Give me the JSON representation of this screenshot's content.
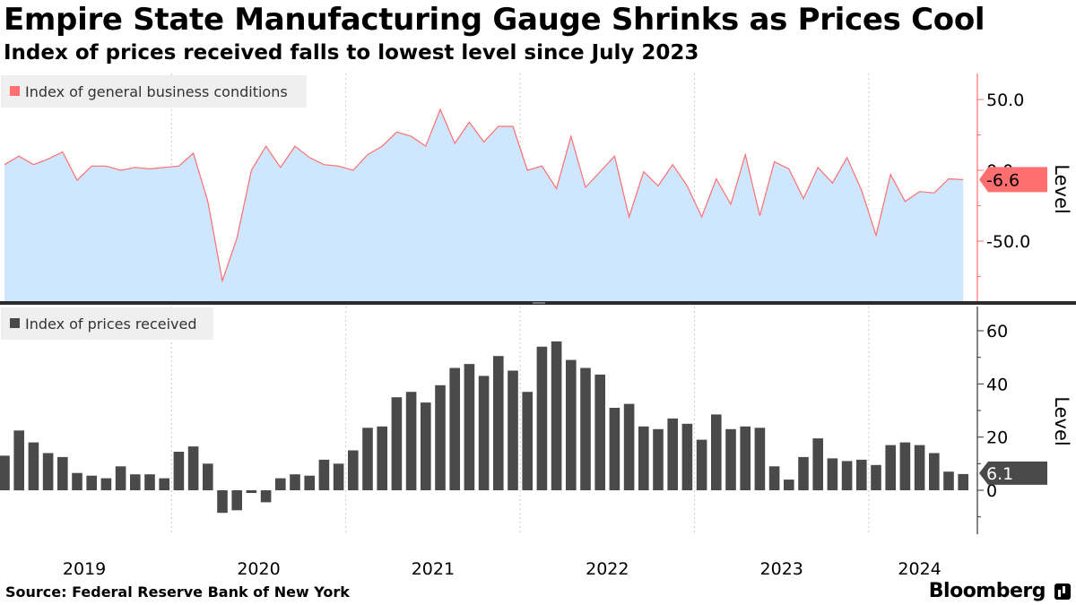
{
  "title": "Empire State Manufacturing Gauge Shrinks as Prices Cool",
  "subtitle": "Index of prices received falls to lowest level since July 2023",
  "source": "Source: Federal Reserve Bank of New York",
  "brand": "Bloomberg",
  "colors": {
    "line": "#ff6f6f",
    "area": "#cfe6ff",
    "bars": "#4a4a4a",
    "tag_top": "#ff6f6f",
    "tag_bottom": "#4a4a4a"
  },
  "chart_data": [
    {
      "type": "area",
      "legend": "Index of general business conditions",
      "ylabel": "Level",
      "y_ticks": [
        "50.0",
        "0.0",
        "-50.0"
      ],
      "ylim": [
        -93,
        68
      ],
      "last_value_label": "-6.6",
      "x_start": "2019-01",
      "x_end": "2024-05",
      "values": [
        4,
        10,
        4,
        8,
        13,
        -7,
        3,
        3,
        0,
        2,
        1,
        2,
        3,
        12,
        -22,
        -78,
        -48,
        0,
        17,
        2,
        17,
        9,
        4,
        3,
        0,
        11,
        17,
        27,
        24,
        17,
        43,
        19,
        34,
        20,
        31,
        31,
        0,
        3,
        -13,
        24,
        -12,
        -1,
        10,
        -33,
        -1,
        -11,
        4,
        -11,
        -33,
        -6,
        -24,
        11,
        -32,
        6,
        1,
        -20,
        2,
        -9,
        9,
        -14,
        -46,
        -3,
        -22,
        -15,
        -16,
        -6,
        -6.6
      ]
    },
    {
      "type": "bar",
      "legend": "Index of prices received",
      "ylabel": "Level",
      "y_ticks": [
        "60",
        "40",
        "20",
        "0"
      ],
      "ylim": [
        -15,
        67
      ],
      "last_value_label": "6.1",
      "x_start": "2019-01",
      "x_end": "2024-05",
      "values": [
        13,
        22.5,
        18,
        14,
        12.5,
        6.5,
        5.5,
        4.5,
        9,
        6,
        6,
        4.5,
        14.5,
        16.5,
        10,
        -8.5,
        -7.5,
        -1,
        -4.5,
        4.5,
        6,
        5.5,
        11.5,
        10,
        15,
        23.5,
        24,
        35,
        37,
        33,
        39.5,
        46,
        47.5,
        43,
        50.5,
        45,
        37,
        54,
        56,
        49,
        46,
        43.5,
        31,
        32.5,
        24,
        23,
        27,
        25,
        19,
        28.5,
        23,
        24,
        23.5,
        9,
        4,
        12.5,
        19.5,
        12,
        11,
        11.5,
        9.5,
        17,
        18,
        17,
        14,
        7,
        6.1
      ]
    }
  ],
  "x_axis": {
    "year_labels": [
      "2019",
      "2020",
      "2021",
      "2022",
      "2023",
      "2024"
    ]
  }
}
